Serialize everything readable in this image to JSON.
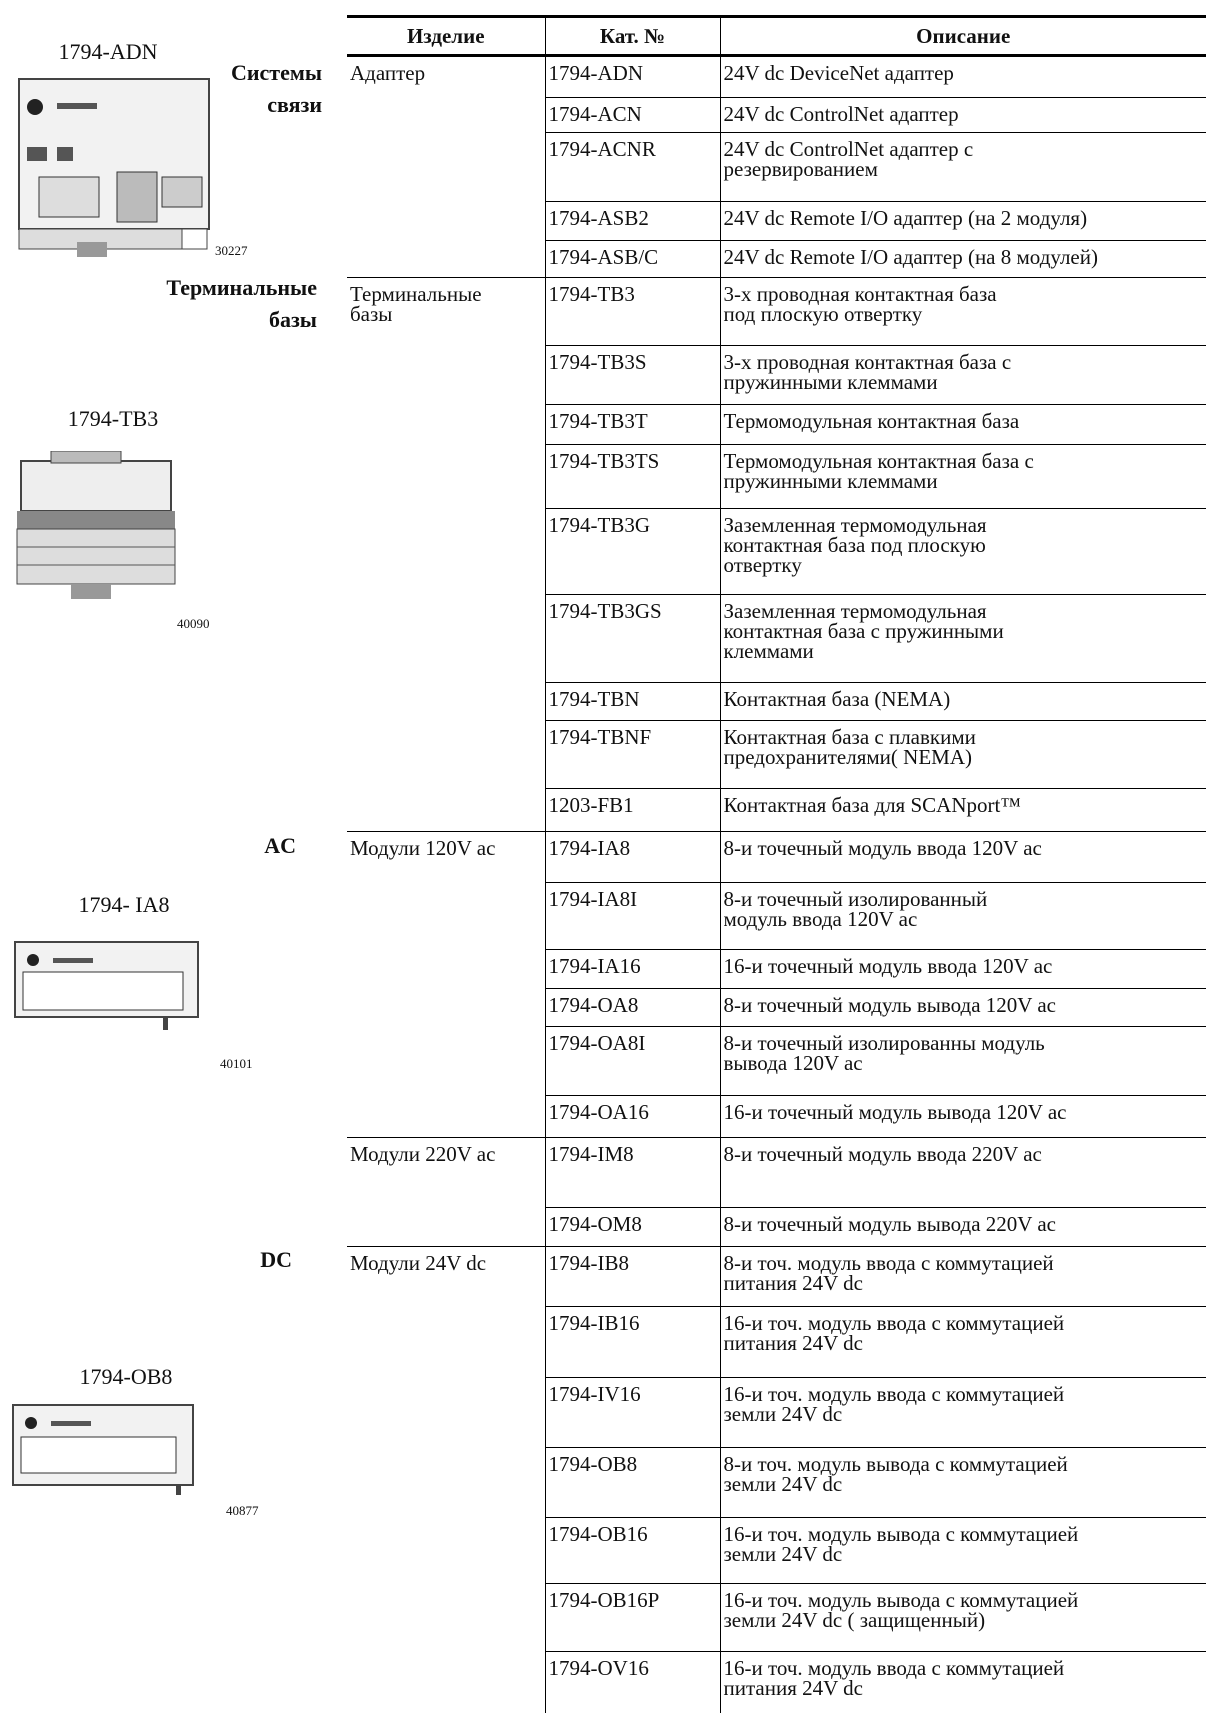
{
  "sidebar": [
    "1794-ADN",
    "Системы\nсвязи",
    "30227",
    "Терминальные\nбазы",
    "1794-TB3",
    "40090",
    "AC",
    "1794- IA8",
    "40101",
    "DC",
    "1794-OB8",
    "40877"
  ],
  "table": {
    "columns": [
      "Изделие",
      "Кат. №",
      "Описание"
    ],
    "groups": [
      {
        "product": "Адаптер",
        "rows": [
          [
            "1794-ADN",
            "24V dc DeviceNet адаптер"
          ],
          [
            "1794-ACN",
            "24V dc ControlNet адаптер"
          ],
          [
            "1794-ACNR",
            "24V dc ControlNet адаптер с\nрезервированием"
          ],
          [
            "1794-ASB2",
            "24V dc Remote I/O адаптер  (на 2 модуля)"
          ],
          [
            "1794-ASB/C",
            "24V dc Remote I/O адаптер (на 8 модулей)"
          ]
        ]
      },
      {
        "product": "Терминальные\nбазы",
        "rows": [
          [
            "1794-TB3",
            "3-х проводная контактная база\nпод плоскую отвертку"
          ],
          [
            "1794-TB3S",
            "3-х проводная контактная база с\n пружинными клеммами"
          ],
          [
            "1794-TB3T",
            "Термомодульная контактная база"
          ],
          [
            "1794-TB3TS",
            "Термомодульная контактная база с\nпружинными клеммами"
          ],
          [
            "1794-TB3G",
            "Заземленная термомодульная\nконтактная база под плоскую\nотвертку"
          ],
          [
            "1794-TB3GS",
            "Заземленная термомодульная\nконтактная база  с пружинными\nклеммами"
          ],
          [
            "1794-TBN",
            "Контактная база (NEMA)"
          ],
          [
            "1794-TBNF",
            "Контактная база с плавкими\nпредохранителями( NEMA)"
          ],
          [
            "1203-FB1",
            "Контактная база для SCANport™"
          ]
        ]
      },
      {
        "product": "Модули 120V ac",
        "rows": [
          [
            "1794-IA8",
            "8-и точечный модуль ввода 120V ac"
          ],
          [
            "1794-IA8I",
            "8-и точечный изолированный\n модуль  ввода 120V ac"
          ],
          [
            "1794-IA16",
            "16-и точечный модуль ввода 120V ac"
          ],
          [
            "1794-OA8",
            "8-и точечный модуль вывода 120V ac"
          ],
          [
            "1794-OA8I",
            "8-и точечный изолированны  модуль\nвывода 120V ac"
          ],
          [
            "1794-OA16",
            "16-и точечный модуль вывода 120V ac"
          ]
        ]
      },
      {
        "product": "Модули 220V ac",
        "rows": [
          [
            "1794-IM8",
            "8-и точечный модуль ввода 220V ac"
          ],
          [
            "1794-OM8",
            "8-и точечный модуль вывода 220V ac"
          ]
        ]
      },
      {
        "product": "Модули 24V dc",
        "rows": [
          [
            "1794-IB8",
            "8-и точ. модуль ввода с коммутацией\nпитания 24V dc"
          ],
          [
            "1794-IB16",
            "16-и точ. модуль ввода с коммутацией\nпитания 24V dc"
          ],
          [
            "1794-IV16",
            "16-и точ. модуль ввода с коммутацией\nземли 24V dc"
          ],
          [
            "1794-OB8",
            "8-и точ. модуль вывода с коммутацией\nземли 24V dc"
          ],
          [
            "1794-OB16",
            "16-и точ. модуль вывода с коммутацией\nземли 24V dc"
          ],
          [
            "1794-OB16P",
            "16-и точ. модуль вывода с коммутацией\nземли 24V dc ( защищенный)"
          ],
          [
            "1794-OV16",
            "16-и точ. модуль ввода с коммутацией\nпитания 24V dc"
          ]
        ]
      }
    ]
  }
}
